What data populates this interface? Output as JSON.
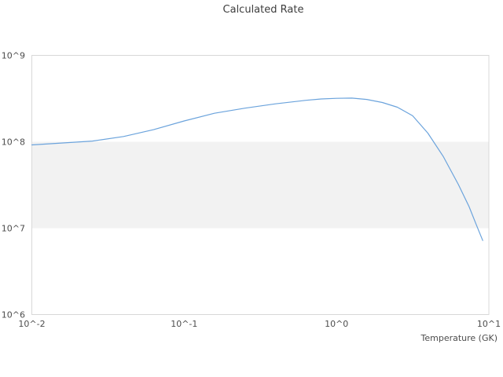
{
  "chart_data": {
    "type": "line",
    "title": "Calculated Rate",
    "xlabel": "Temperature (GK)",
    "ylabel": "",
    "x_scale": "log",
    "y_scale": "log",
    "xlim": [
      0.01,
      10
    ],
    "ylim": [
      1000000,
      1000000000
    ],
    "grid": false,
    "legend": false,
    "x_ticks": [
      {
        "value": 0.01,
        "label": "10^-2"
      },
      {
        "value": 0.1,
        "label": "10^-1"
      },
      {
        "value": 1,
        "label": "10^0"
      },
      {
        "value": 10,
        "label": "10^1"
      }
    ],
    "y_ticks": [
      {
        "value": 1000000,
        "label": "10^6"
      },
      {
        "value": 10000000,
        "label": "10^7"
      },
      {
        "value": 100000000,
        "label": "10^8"
      },
      {
        "value": 1000000000,
        "label": "10^9"
      }
    ],
    "band": {
      "axis": "y",
      "from": 10000000,
      "to": 100000000,
      "color": "#f2f2f2"
    },
    "series": [
      {
        "name": "Calculated Rate",
        "color": "#6ba3dc",
        "x": [
          0.01,
          0.016,
          0.025,
          0.04,
          0.063,
          0.1,
          0.158,
          0.251,
          0.398,
          0.631,
          0.794,
          1.0,
          1.26,
          1.58,
          2.0,
          2.51,
          3.16,
          3.98,
          5.01,
          6.31,
          7.41,
          8.32,
          9.12
        ],
        "y": [
          92000000.0,
          97000000.0,
          102000000.0,
          115000000.0,
          138000000.0,
          174000000.0,
          214000000.0,
          245000000.0,
          275000000.0,
          302000000.0,
          313000000.0,
          318000000.0,
          320000000.0,
          309000000.0,
          285000000.0,
          251000000.0,
          200000000.0,
          126000000.0,
          68000000.0,
          32000000.0,
          17800000.0,
          10700000.0,
          7200000.0
        ]
      }
    ]
  },
  "colors": {
    "line": "#6ba3dc",
    "band": "#f2f2f2",
    "border": "#d8d8d8",
    "title_text": "#3d3d3d",
    "tick_text": "#4d4d4d",
    "background": "#ffffff"
  }
}
